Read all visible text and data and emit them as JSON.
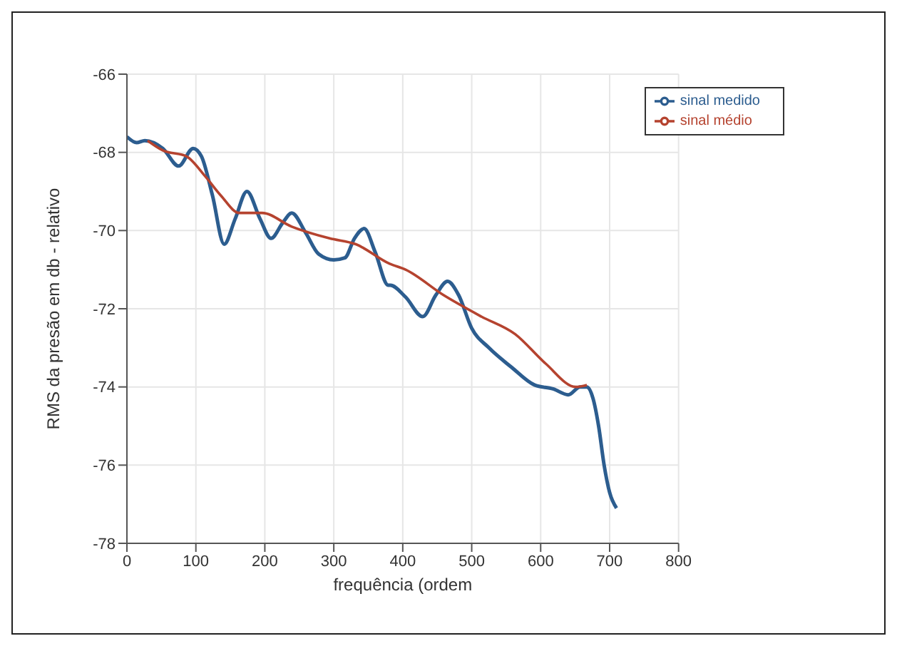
{
  "chart_data": {
    "type": "line",
    "xlabel": "frequência (ordem",
    "ylabel": "RMS da presão em db - relativo",
    "xlim": [
      0,
      800
    ],
    "xticks": [
      0,
      100,
      200,
      300,
      400,
      500,
      600,
      700,
      800
    ],
    "ylim": [
      -78,
      -66
    ],
    "yticks": [
      -78,
      -76,
      -74,
      -72,
      -70,
      -68,
      -66
    ],
    "grid": true,
    "legend": "top right",
    "marker": "none",
    "line_style": "solid",
    "series": [
      {
        "name": "sinal medido",
        "color": "#2c5d8f",
        "x": [
          0,
          14,
          26,
          52,
          75,
          96,
          108,
          124,
          141,
          157,
          174,
          193,
          209,
          226,
          239,
          259,
          278,
          300,
          316,
          330,
          344,
          360,
          379,
          382,
          404,
          429,
          448,
          465,
          481,
          500,
          525,
          558,
          591,
          618,
          640,
          657,
          667,
          676,
          684,
          692,
          700,
          710
        ],
        "values": [
          -67.6,
          -67.75,
          -67.7,
          -67.9,
          -68.35,
          -67.9,
          -68.1,
          -69.1,
          -70.35,
          -69.7,
          -69.0,
          -69.7,
          -70.2,
          -69.8,
          -69.55,
          -70.05,
          -70.6,
          -70.75,
          -70.7,
          -70.2,
          -69.95,
          -70.55,
          -71.4,
          -71.4,
          -71.7,
          -72.2,
          -71.65,
          -71.3,
          -71.65,
          -72.5,
          -73.0,
          -73.5,
          -73.95,
          -74.05,
          -74.2,
          -74.0,
          -74.0,
          -74.3,
          -75.0,
          -76.0,
          -76.7,
          -77.1
        ]
      },
      {
        "name": "sinal médio",
        "color": "#b5432f",
        "x": [
          30,
          52,
          86,
          113,
          136,
          163,
          196,
          239,
          294,
          332,
          381,
          404,
          459,
          514,
          563,
          607,
          651,
          667
        ],
        "values": [
          -67.7,
          -67.95,
          -68.1,
          -68.6,
          -69.1,
          -69.55,
          -69.55,
          -69.9,
          -70.2,
          -70.35,
          -70.85,
          -71.0,
          -71.65,
          -72.2,
          -72.65,
          -73.4,
          -74.0,
          -73.95
        ]
      }
    ]
  }
}
